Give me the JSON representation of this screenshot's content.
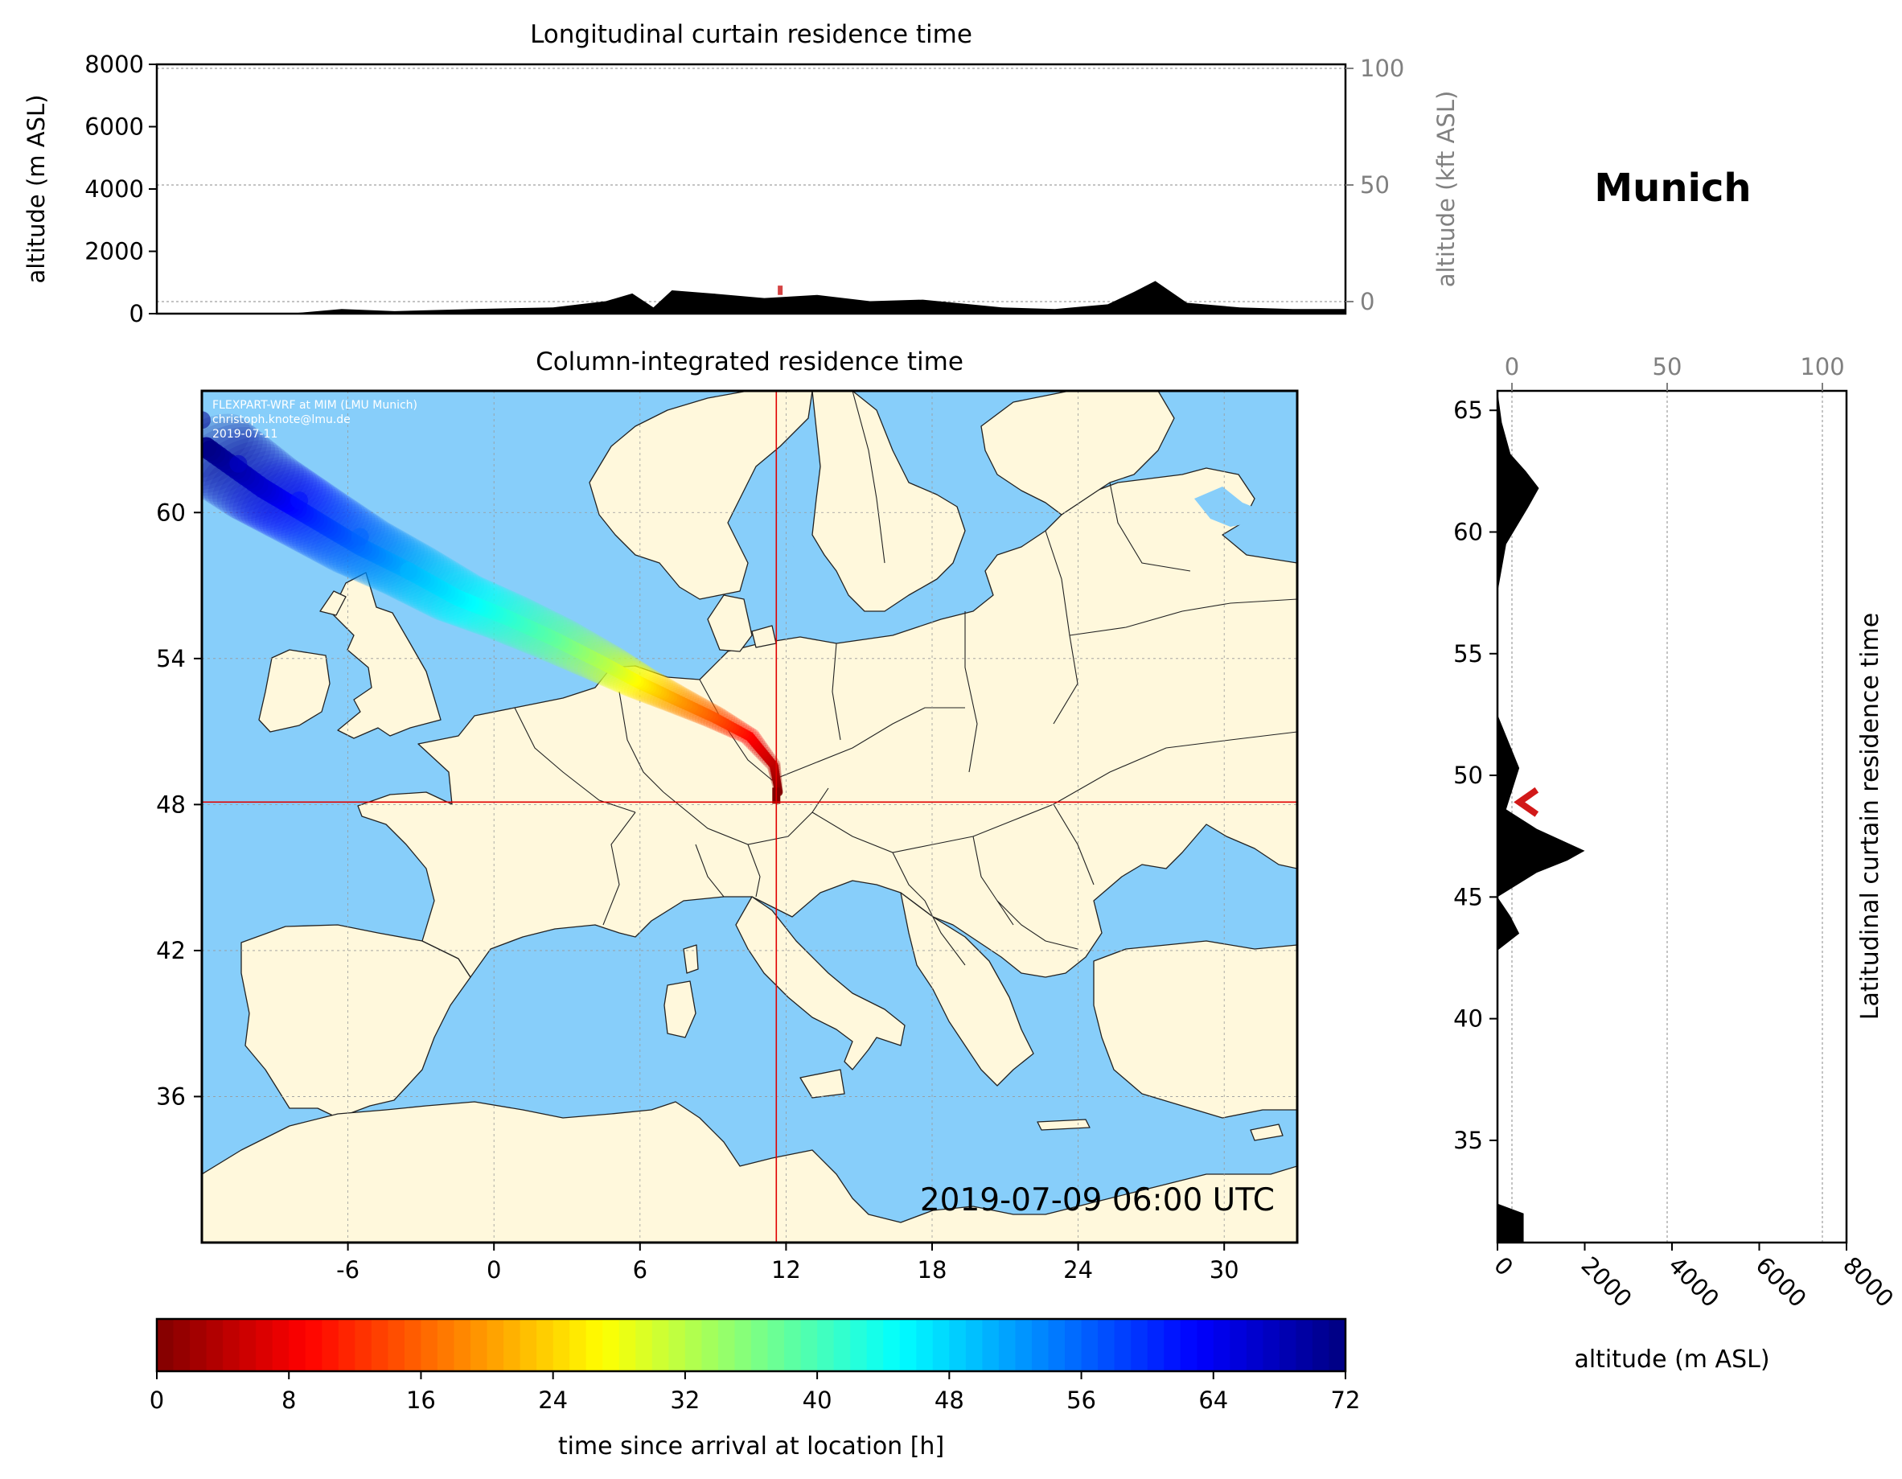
{
  "station": "Munich",
  "top_panel": {
    "title": "Longitudinal curtain residence time",
    "ylabel_left": "altitude (m ASL)",
    "ylabel_right": "altitude (kft ASL)",
    "ylim_m": [
      0,
      8000
    ],
    "yticks_m": [
      "0",
      "2000",
      "4000",
      "6000",
      "8000"
    ],
    "yticks_kft": [
      "0",
      "50",
      "100"
    ]
  },
  "map_panel": {
    "title": "Column-integrated residence time",
    "credit": [
      "FLEXPART-WRF at MIM (LMU Munich)",
      "christoph.knote@lmu.de",
      "2019-07-11"
    ],
    "timestamp": "2019-07-09 06:00 UTC",
    "xlim": [
      -12,
      33
    ],
    "ylim": [
      30,
      65
    ],
    "xticks": [
      "-6",
      "0",
      "6",
      "12",
      "18",
      "24",
      "30"
    ],
    "yticks": [
      "36",
      "42",
      "48",
      "54",
      "60"
    ],
    "crosshair_lon": 11.6,
    "crosshair_lat": 48.1
  },
  "side_panel": {
    "ylabel_right": "Latitudinal curtain residence time",
    "xlabel": "altitude (m ASL)",
    "xlim_m": [
      0,
      8000
    ],
    "xticks_m": [
      "0",
      "2000",
      "4000",
      "6000",
      "8000"
    ],
    "xticks_kft": [
      "0",
      "50",
      "100"
    ],
    "ylim": [
      30.8,
      65.8
    ],
    "yticks": [
      "35",
      "40",
      "45",
      "50",
      "55",
      "60",
      "65"
    ]
  },
  "colorbar": {
    "label": "time since arrival at location [h]",
    "range": [
      0,
      72
    ],
    "ticks": [
      "0",
      "8",
      "16",
      "24",
      "32",
      "40",
      "48",
      "56",
      "64",
      "72"
    ]
  },
  "colors": {
    "ocean": "#87cefa",
    "land": "#fff8dc",
    "crosshair": "#e00000",
    "kft_axis": "#808080"
  },
  "chart_data": [
    {
      "type": "area",
      "title": "Longitudinal curtain residence time",
      "xlabel": "",
      "ylabel": "altitude (m ASL)",
      "ylim": [
        0,
        8000
      ],
      "terrain_profile": {
        "x_lon": [
          -12,
          -7,
          -5,
          -3,
          0,
          3,
          5,
          6,
          6.8,
          7.5,
          9,
          11,
          13,
          15,
          17,
          20,
          22,
          24,
          25,
          25.8,
          27,
          29,
          31,
          33
        ],
        "altitude_m": [
          0,
          0,
          150,
          80,
          150,
          200,
          400,
          650,
          200,
          750,
          650,
          500,
          600,
          400,
          450,
          200,
          150,
          300,
          700,
          1050,
          350,
          200,
          150,
          150
        ]
      },
      "residence_marker": {
        "lon": 11.6,
        "altitude_m_range": [
          600,
          900
        ]
      }
    },
    {
      "type": "heatmap",
      "title": "Column-integrated residence time",
      "xlim": [
        -12,
        33
      ],
      "ylim": [
        30,
        65
      ],
      "colorbar": "time since arrival at location [h]",
      "trajectory": {
        "lon": [
          11.7,
          11.5,
          10.5,
          9,
          7.5,
          6,
          4.5,
          2.5,
          0.5,
          -1.5,
          -3.5,
          -5.5,
          -7.5,
          -9.5,
          -12
        ],
        "lat": [
          48.5,
          49.6,
          50.8,
          51.6,
          52.3,
          53.0,
          53.8,
          54.8,
          55.7,
          56.5,
          57.6,
          58.6,
          59.8,
          61.0,
          62.8
        ],
        "hours": [
          0,
          4,
          9,
          15,
          20,
          26,
          32,
          38,
          42,
          46,
          50,
          55,
          60,
          66,
          72
        ]
      },
      "arrival_point": {
        "lon": 11.6,
        "lat": 48.1
      }
    },
    {
      "type": "area",
      "title": "",
      "ylabel": "Latitudinal curtain residence time",
      "xlabel": "altitude (m ASL)",
      "xlim": [
        0,
        8000
      ],
      "terrain_profile": {
        "lat": [
          30.8,
          32.0,
          32.4,
          42.8,
          43.5,
          44.2,
          45.0,
          46.0,
          46.5,
          46.9,
          47.8,
          48.6,
          50.3,
          52.5,
          57.5,
          59.5,
          61.0,
          61.8,
          62.5,
          63.2,
          64.5,
          65.8
        ],
        "altitude_m": [
          600,
          600,
          0,
          0,
          500,
          300,
          0,
          900,
          1600,
          2000,
          900,
          200,
          500,
          0,
          0,
          200,
          700,
          950,
          650,
          300,
          100,
          0
        ]
      },
      "residence_marker": {
        "lat_range": [
          48.4,
          49.4
        ],
        "altitude_m_range": [
          500,
          900
        ]
      }
    }
  ]
}
